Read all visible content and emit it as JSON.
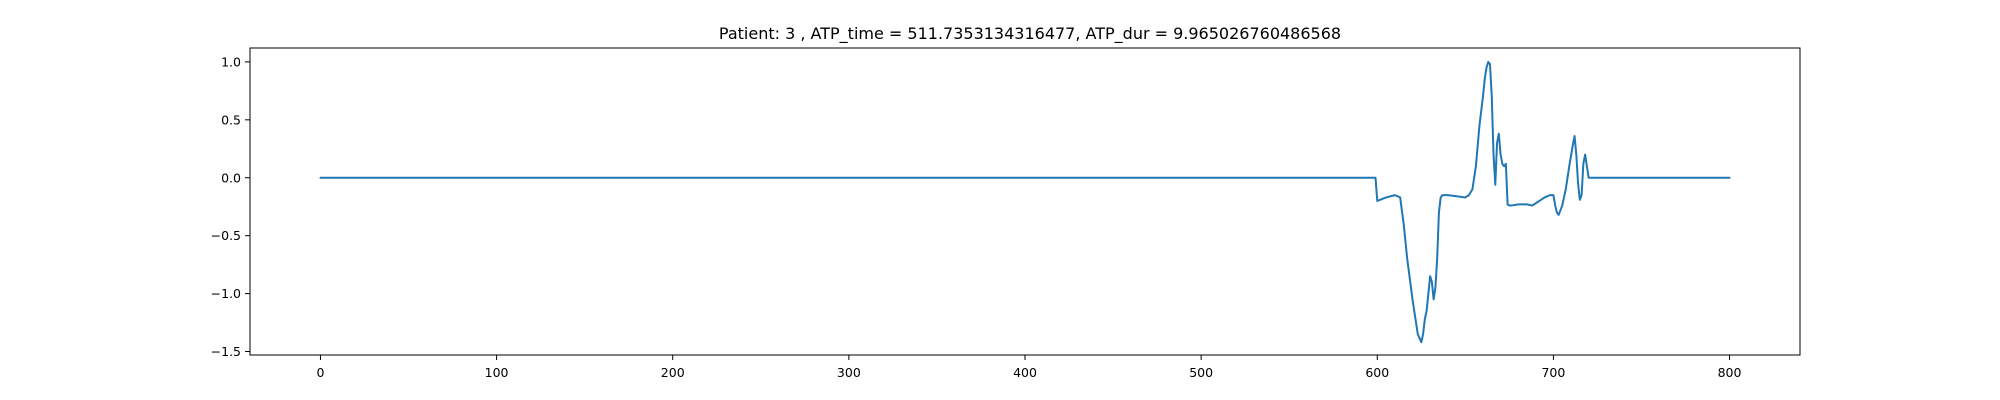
{
  "chart_data": {
    "type": "line",
    "title": "Patient: 3 , ATP_time = 511.7353134316477, ATP_dur = 9.965026760486568",
    "xlabel": "",
    "ylabel": "",
    "xlim": [
      -40,
      840
    ],
    "ylim": [
      -1.53,
      1.12
    ],
    "xticks": [
      0,
      100,
      200,
      300,
      400,
      500,
      600,
      700,
      800
    ],
    "xtick_labels": [
      "0",
      "100",
      "200",
      "300",
      "400",
      "500",
      "600",
      "700",
      "800"
    ],
    "yticks": [
      1.0,
      0.5,
      0.0,
      -0.5,
      -1.0,
      -1.5
    ],
    "ytick_labels": [
      "1.0",
      "0.5",
      "0.0",
      "−0.5",
      "−1.0",
      "−1.5"
    ],
    "grid": false,
    "color": "#1f77b4",
    "series": [
      {
        "x": [
          0,
          599,
          600,
          605,
          610,
          613,
          615,
          617,
          620,
          623,
          625,
          626,
          627,
          628,
          629,
          630,
          631,
          632,
          633,
          634,
          635,
          636,
          637,
          640,
          645,
          650,
          652,
          654,
          656,
          658,
          660,
          661,
          662,
          663,
          664,
          665,
          666,
          667,
          668,
          669,
          670,
          671,
          672,
          673,
          674,
          675,
          676,
          680,
          685,
          688,
          690,
          692,
          695,
          698,
          700,
          701,
          702,
          703,
          705,
          707,
          709,
          711,
          712,
          713,
          714,
          715,
          716,
          717,
          718,
          719,
          720,
          721,
          722,
          725,
          800
        ],
        "y": [
          0.0,
          0.0,
          -0.2,
          -0.17,
          -0.15,
          -0.17,
          -0.4,
          -0.7,
          -1.05,
          -1.35,
          -1.42,
          -1.35,
          -1.22,
          -1.15,
          -1.0,
          -0.85,
          -0.9,
          -1.05,
          -0.95,
          -0.7,
          -0.3,
          -0.17,
          -0.15,
          -0.15,
          -0.16,
          -0.17,
          -0.15,
          -0.1,
          0.1,
          0.45,
          0.7,
          0.85,
          0.95,
          1.0,
          0.98,
          0.7,
          0.2,
          -0.06,
          0.3,
          0.38,
          0.2,
          0.12,
          0.1,
          0.12,
          -0.23,
          -0.24,
          -0.24,
          -0.23,
          -0.23,
          -0.24,
          -0.22,
          -0.2,
          -0.17,
          -0.15,
          -0.15,
          -0.24,
          -0.3,
          -0.32,
          -0.24,
          -0.1,
          0.1,
          0.28,
          0.36,
          0.2,
          -0.05,
          -0.19,
          -0.15,
          0.12,
          0.2,
          0.1,
          0.0,
          0.0,
          0.0,
          0.0,
          0.0
        ]
      }
    ]
  }
}
